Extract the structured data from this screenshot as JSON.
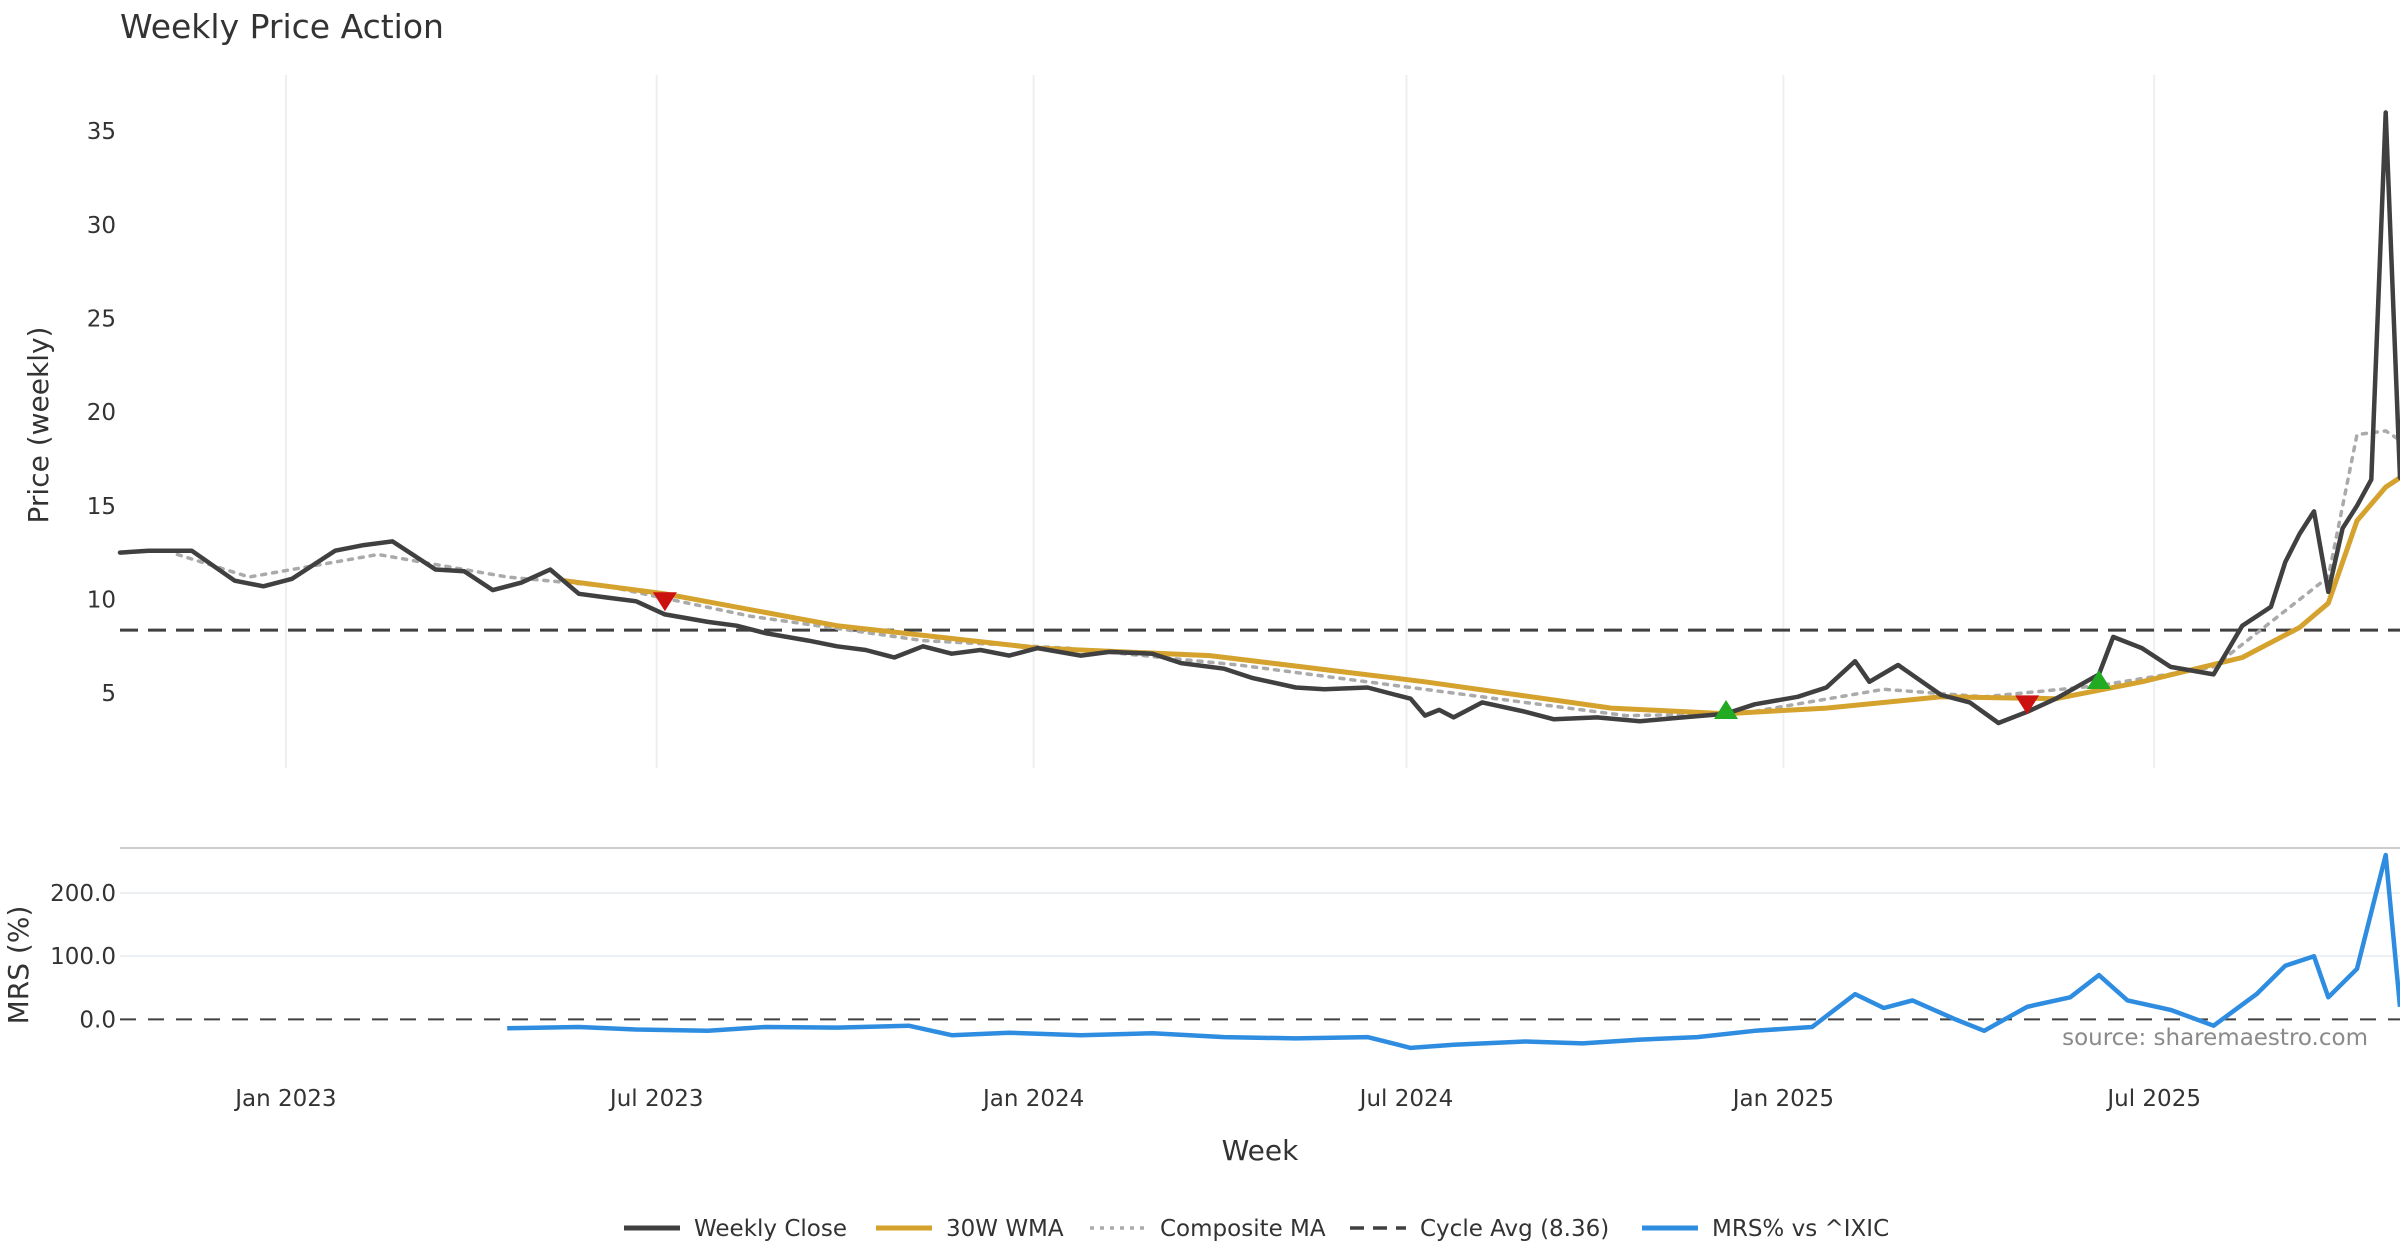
{
  "chart_data": {
    "type": "line",
    "title": "Weekly Price Action",
    "xlabel": "Week",
    "source_note": "source: sharemaestro.com",
    "x_ticks": [
      {
        "date": "2023-01-01",
        "label": "Jan 2023"
      },
      {
        "date": "2023-07-01",
        "label": "Jul 2023"
      },
      {
        "date": "2024-01-01",
        "label": "Jan 2024"
      },
      {
        "date": "2024-07-01",
        "label": "Jul 2024"
      },
      {
        "date": "2025-01-01",
        "label": "Jan 2025"
      },
      {
        "date": "2025-07-01",
        "label": "Jul 2025"
      }
    ],
    "x_range": [
      "2022-10-12",
      "2025-10-29"
    ],
    "price_panel": {
      "ylabel": "Price (weekly)",
      "ylim": [
        1,
        38
      ],
      "yticks": [
        5,
        10,
        15,
        20,
        25,
        30,
        35
      ],
      "series": [
        {
          "name": "Weekly Close",
          "color": "#404040",
          "style": "solid",
          "values": [
            [
              "2022-10-12",
              12.5
            ],
            [
              "2022-10-26",
              12.6
            ],
            [
              "2022-11-16",
              12.6
            ],
            [
              "2022-12-07",
              11.0
            ],
            [
              "2022-12-21",
              10.7
            ],
            [
              "2023-01-04",
              11.1
            ],
            [
              "2023-01-25",
              12.6
            ],
            [
              "2023-02-08",
              12.9
            ],
            [
              "2023-02-22",
              13.1
            ],
            [
              "2023-03-15",
              11.6
            ],
            [
              "2023-03-29",
              11.5
            ],
            [
              "2023-04-12",
              10.5
            ],
            [
              "2023-04-26",
              10.9
            ],
            [
              "2023-05-10",
              11.6
            ],
            [
              "2023-05-24",
              10.3
            ],
            [
              "2023-06-07",
              10.1
            ],
            [
              "2023-06-21",
              9.9
            ],
            [
              "2023-07-05",
              9.2
            ],
            [
              "2023-07-26",
              8.8
            ],
            [
              "2023-08-09",
              8.6
            ],
            [
              "2023-08-23",
              8.2
            ],
            [
              "2023-09-13",
              7.8
            ],
            [
              "2023-09-27",
              7.5
            ],
            [
              "2023-10-11",
              7.3
            ],
            [
              "2023-10-25",
              6.9
            ],
            [
              "2023-11-08",
              7.5
            ],
            [
              "2023-11-22",
              7.1
            ],
            [
              "2023-12-06",
              7.3
            ],
            [
              "2023-12-20",
              7.0
            ],
            [
              "2024-01-03",
              7.4
            ],
            [
              "2024-01-24",
              7.0
            ],
            [
              "2024-02-07",
              7.2
            ],
            [
              "2024-02-28",
              7.1
            ],
            [
              "2024-03-13",
              6.6
            ],
            [
              "2024-04-03",
              6.3
            ],
            [
              "2024-04-17",
              5.8
            ],
            [
              "2024-05-08",
              5.3
            ],
            [
              "2024-05-22",
              5.2
            ],
            [
              "2024-06-12",
              5.3
            ],
            [
              "2024-06-26",
              4.9
            ],
            [
              "2024-07-03",
              4.7
            ],
            [
              "2024-07-10",
              3.8
            ],
            [
              "2024-07-17",
              4.1
            ],
            [
              "2024-07-24",
              3.7
            ],
            [
              "2024-08-07",
              4.5
            ],
            [
              "2024-08-28",
              4.0
            ],
            [
              "2024-09-11",
              3.6
            ],
            [
              "2024-10-02",
              3.7
            ],
            [
              "2024-10-23",
              3.5
            ],
            [
              "2024-11-13",
              3.7
            ],
            [
              "2024-12-04",
              3.9
            ],
            [
              "2024-12-18",
              4.4
            ],
            [
              "2025-01-08",
              4.8
            ],
            [
              "2025-01-22",
              5.3
            ],
            [
              "2025-02-05",
              6.7
            ],
            [
              "2025-02-12",
              5.6
            ],
            [
              "2025-02-26",
              6.5
            ],
            [
              "2025-03-19",
              4.9
            ],
            [
              "2025-04-02",
              4.5
            ],
            [
              "2025-04-16",
              3.4
            ],
            [
              "2025-04-30",
              4.0
            ],
            [
              "2025-05-14",
              4.7
            ],
            [
              "2025-06-04",
              6.0
            ],
            [
              "2025-06-11",
              8.0
            ],
            [
              "2025-06-25",
              7.4
            ],
            [
              "2025-07-09",
              6.4
            ],
            [
              "2025-07-30",
              6.0
            ],
            [
              "2025-08-13",
              8.6
            ],
            [
              "2025-08-27",
              9.6
            ],
            [
              "2025-09-03",
              12.0
            ],
            [
              "2025-09-10",
              13.5
            ],
            [
              "2025-09-17",
              14.7
            ],
            [
              "2025-09-24",
              10.4
            ],
            [
              "2025-10-01",
              13.8
            ],
            [
              "2025-10-08",
              15.0
            ],
            [
              "2025-10-15",
              16.4
            ],
            [
              "2025-10-22",
              36.0
            ],
            [
              "2025-10-29",
              16.5
            ]
          ]
        },
        {
          "name": "30W WMA",
          "color": "#d4a22d",
          "style": "solid",
          "values": [
            [
              "2023-05-17",
              11.0
            ],
            [
              "2023-07-05",
              10.3
            ],
            [
              "2023-09-27",
              8.6
            ],
            [
              "2024-01-03",
              7.4
            ],
            [
              "2024-03-27",
              7.0
            ],
            [
              "2024-07-10",
              5.6
            ],
            [
              "2024-10-09",
              4.2
            ],
            [
              "2024-12-04",
              3.9
            ],
            [
              "2025-01-22",
              4.2
            ],
            [
              "2025-03-19",
              4.8
            ],
            [
              "2025-05-14",
              4.7
            ],
            [
              "2025-06-25",
              5.6
            ],
            [
              "2025-08-13",
              6.9
            ],
            [
              "2025-09-10",
              8.5
            ],
            [
              "2025-09-24",
              9.8
            ],
            [
              "2025-10-08",
              14.2
            ],
            [
              "2025-10-22",
              16.0
            ],
            [
              "2025-10-29",
              16.5
            ]
          ]
        },
        {
          "name": "Composite MA",
          "color": "#aaaaaa",
          "style": "dotted",
          "values": [
            [
              "2022-11-09",
              12.4
            ],
            [
              "2022-12-14",
              11.2
            ],
            [
              "2023-02-15",
              12.4
            ],
            [
              "2023-04-19",
              11.2
            ],
            [
              "2023-06-07",
              10.7
            ],
            [
              "2023-08-16",
              9.1
            ],
            [
              "2023-11-08",
              7.8
            ],
            [
              "2024-01-17",
              7.4
            ],
            [
              "2024-04-10",
              6.5
            ],
            [
              "2024-07-24",
              5.0
            ],
            [
              "2024-10-16",
              3.8
            ],
            [
              "2024-12-11",
              3.9
            ],
            [
              "2025-02-19",
              5.2
            ],
            [
              "2025-04-09",
              4.8
            ],
            [
              "2025-06-04",
              5.4
            ],
            [
              "2025-07-30",
              6.4
            ],
            [
              "2025-09-03",
              9.4
            ],
            [
              "2025-09-24",
              11.2
            ],
            [
              "2025-10-08",
              18.8
            ],
            [
              "2025-10-22",
              19.0
            ],
            [
              "2025-10-29",
              18.5
            ]
          ]
        },
        {
          "name": "Cycle Avg (8.36)",
          "color": "#404040",
          "style": "dashed",
          "level": 8.36
        }
      ],
      "signals": [
        {
          "type": "sell",
          "color": "#cc1111",
          "date": "2023-07-05",
          "price": 9.9
        },
        {
          "type": "buy",
          "color": "#22aa22",
          "date": "2024-12-04",
          "price": 4.1
        },
        {
          "type": "sell",
          "color": "#cc1111",
          "date": "2025-04-30",
          "price": 4.4
        },
        {
          "type": "buy",
          "color": "#22aa22",
          "date": "2025-06-04",
          "price": 5.7
        }
      ]
    },
    "mrs_panel": {
      "ylabel": "MRS (%)",
      "ylim": [
        -80,
        260
      ],
      "yticks": [
        {
          "value": 0,
          "label": "0.0"
        },
        {
          "value": 100,
          "label": "100.0"
        },
        {
          "value": 200,
          "label": "200.0"
        }
      ],
      "zero_line": {
        "value": 0,
        "style": "dashed"
      },
      "series": [
        {
          "name": "MRS% vs ^IXIC",
          "color": "#2e8de0",
          "style": "solid",
          "values": [
            [
              "2023-04-19",
              -14
            ],
            [
              "2023-05-24",
              -12
            ],
            [
              "2023-06-21",
              -16
            ],
            [
              "2023-07-26",
              -18
            ],
            [
              "2023-08-23",
              -12
            ],
            [
              "2023-09-27",
              -13
            ],
            [
              "2023-11-01",
              -10
            ],
            [
              "2023-11-22",
              -25
            ],
            [
              "2023-12-20",
              -21
            ],
            [
              "2024-01-24",
              -25
            ],
            [
              "2024-02-28",
              -22
            ],
            [
              "2024-04-03",
              -28
            ],
            [
              "2024-05-08",
              -30
            ],
            [
              "2024-06-12",
              -28
            ],
            [
              "2024-07-03",
              -45
            ],
            [
              "2024-07-24",
              -40
            ],
            [
              "2024-08-28",
              -35
            ],
            [
              "2024-09-25",
              -38
            ],
            [
              "2024-10-23",
              -32
            ],
            [
              "2024-11-20",
              -28
            ],
            [
              "2024-12-18",
              -18
            ],
            [
              "2025-01-15",
              -12
            ],
            [
              "2025-02-05",
              40
            ],
            [
              "2025-02-19",
              18
            ],
            [
              "2025-03-05",
              30
            ],
            [
              "2025-03-26",
              0
            ],
            [
              "2025-04-09",
              -18
            ],
            [
              "2025-04-30",
              20
            ],
            [
              "2025-05-21",
              35
            ],
            [
              "2025-06-04",
              70
            ],
            [
              "2025-06-18",
              30
            ],
            [
              "2025-07-09",
              15
            ],
            [
              "2025-07-30",
              -10
            ],
            [
              "2025-08-20",
              40
            ],
            [
              "2025-09-03",
              85
            ],
            [
              "2025-09-17",
              100
            ],
            [
              "2025-09-24",
              35
            ],
            [
              "2025-10-08",
              80
            ],
            [
              "2025-10-22",
              260
            ],
            [
              "2025-10-29",
              20
            ]
          ]
        }
      ]
    },
    "legend": [
      {
        "label": "Weekly Close",
        "color": "#404040",
        "style": "solid"
      },
      {
        "label": "30W WMA",
        "color": "#d4a22d",
        "style": "solid"
      },
      {
        "label": "Composite MA",
        "color": "#aaaaaa",
        "style": "dotted"
      },
      {
        "label": "Cycle Avg (8.36)",
        "color": "#404040",
        "style": "dashed"
      },
      {
        "label": "MRS% vs ^IXIC",
        "color": "#2e8de0",
        "style": "solid"
      }
    ]
  }
}
